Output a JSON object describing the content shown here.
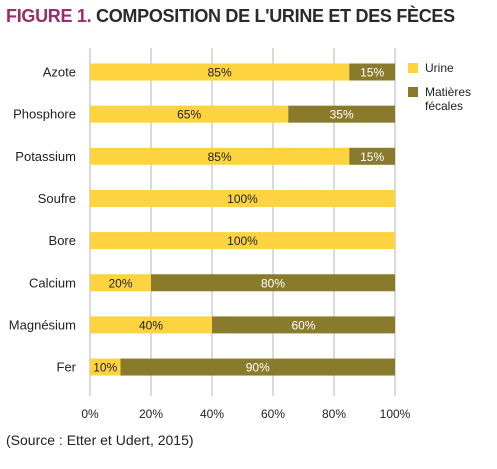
{
  "title": {
    "figure_label": "FIGURE 1.",
    "text": "COMPOSITION DE L'URINE ET DES FÈCES"
  },
  "source": "(Source : Etter et Udert, 2015)",
  "colors": {
    "urine": "#fdd33f",
    "feces": "#8a7b2c",
    "grid": "#b5b5b5",
    "title_accent": "#9b2d6a"
  },
  "chart_data": {
    "type": "bar",
    "orientation": "horizontal",
    "stacked": true,
    "categories": [
      "Azote",
      "Phosphore",
      "Potassium",
      "Soufre",
      "Bore",
      "Calcium",
      "Magnésium",
      "Fer"
    ],
    "series": [
      {
        "name": "Urine",
        "values": [
          85,
          65,
          85,
          100,
          100,
          20,
          40,
          10
        ],
        "labels": [
          "85%",
          "65%",
          "85%",
          "100%",
          "100%",
          "20%",
          "40%",
          "10%"
        ]
      },
      {
        "name": "Matières fécales",
        "values": [
          15,
          35,
          15,
          0,
          0,
          80,
          60,
          90
        ],
        "labels": [
          "15%",
          "35%",
          "15%",
          "",
          "",
          "80%",
          "60%",
          "90%"
        ]
      }
    ],
    "x_ticks": [
      "0%",
      "20%",
      "40%",
      "60%",
      "80%",
      "100%"
    ],
    "xlim": [
      0,
      100
    ],
    "grid": true,
    "legend_position": "right"
  }
}
